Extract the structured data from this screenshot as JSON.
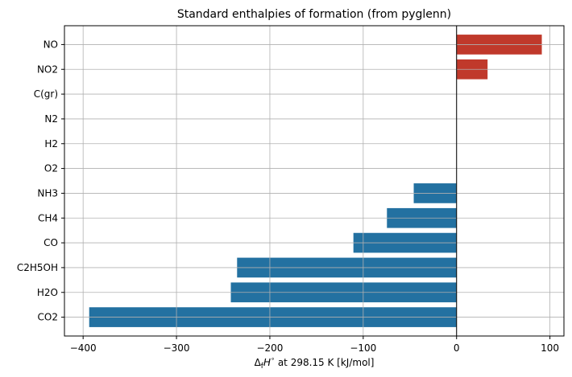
{
  "chart_data": {
    "type": "bar",
    "orientation": "horizontal",
    "title": "Standard enthalpies of formation (from pyglenn)",
    "xlabel_parts": {
      "delta": "Δ",
      "sub": "f",
      "H": "H",
      "sup": "∘",
      "rest": " at 298.15 K [kJ/mol]"
    },
    "xlim": [
      -420,
      115
    ],
    "xticks": [
      -400,
      -300,
      -200,
      -100,
      0,
      100
    ],
    "xtick_labels": [
      "−400",
      "−300",
      "−200",
      "−100",
      "0",
      "100"
    ],
    "grid": true,
    "categories": [
      "CO2",
      "H2O",
      "C2H5OH",
      "CO",
      "CH4",
      "NH3",
      "O2",
      "H2",
      "N2",
      "C(gr)",
      "NO2",
      "NO"
    ],
    "values": [
      -393.5,
      -241.8,
      -235.1,
      -110.5,
      -74.6,
      -45.9,
      0,
      0,
      0,
      0,
      33.2,
      91.3
    ],
    "colors": {
      "negative": "#2371a1",
      "positive": "#c0392b",
      "zero_line": "#000000",
      "grid": "#b0b0b0"
    }
  }
}
